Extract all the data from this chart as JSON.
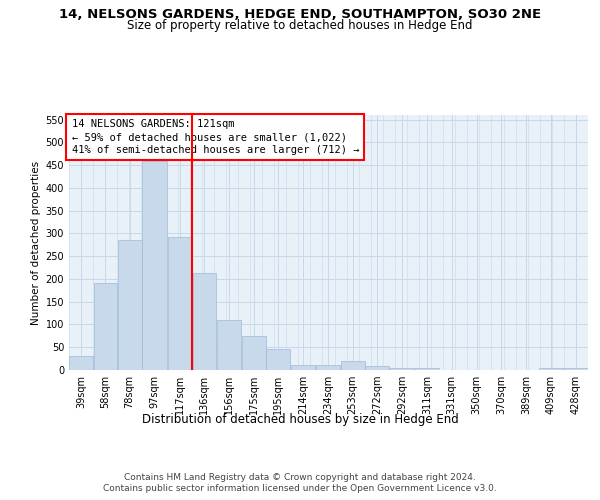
{
  "title": "14, NELSONS GARDENS, HEDGE END, SOUTHAMPTON, SO30 2NE",
  "subtitle": "Size of property relative to detached houses in Hedge End",
  "xlabel": "Distribution of detached houses by size in Hedge End",
  "ylabel": "Number of detached properties",
  "bar_color": "#c9d9ec",
  "bar_edge_color": "#a0b8d8",
  "grid_color": "#c8d8e8",
  "background_color": "#e8f0f8",
  "vline_color": "red",
  "annotation_lines": [
    "14 NELSONS GARDENS: 121sqm",
    "← 59% of detached houses are smaller (1,022)",
    "41% of semi-detached houses are larger (712) →"
  ],
  "categories": [
    "39sqm",
    "58sqm",
    "78sqm",
    "97sqm",
    "117sqm",
    "136sqm",
    "156sqm",
    "175sqm",
    "195sqm",
    "214sqm",
    "234sqm",
    "253sqm",
    "272sqm",
    "292sqm",
    "311sqm",
    "331sqm",
    "350sqm",
    "370sqm",
    "389sqm",
    "409sqm",
    "428sqm"
  ],
  "bin_edges": [
    29.5,
    48.5,
    67.5,
    87.0,
    107.0,
    126.5,
    145.5,
    165.0,
    184.5,
    204.0,
    223.5,
    243.0,
    262.5,
    282.0,
    301.5,
    321.0,
    340.5,
    360.0,
    379.5,
    399.0,
    418.5,
    438.0
  ],
  "values": [
    30,
    190,
    285,
    460,
    293,
    212,
    110,
    75,
    47,
    11,
    11,
    20,
    8,
    5,
    5,
    0,
    0,
    0,
    0,
    5,
    5
  ],
  "ylim": [
    0,
    560
  ],
  "yticks": [
    0,
    50,
    100,
    150,
    200,
    250,
    300,
    350,
    400,
    450,
    500,
    550
  ],
  "footer_lines": [
    "Contains HM Land Registry data © Crown copyright and database right 2024.",
    "Contains public sector information licensed under the Open Government Licence v3.0."
  ],
  "title_fontsize": 9.5,
  "subtitle_fontsize": 8.5,
  "annotation_fontsize": 7.5,
  "xlabel_fontsize": 8.5,
  "ylabel_fontsize": 7.5,
  "footer_fontsize": 6.5,
  "tick_fontsize": 7,
  "ytick_fontsize": 7
}
